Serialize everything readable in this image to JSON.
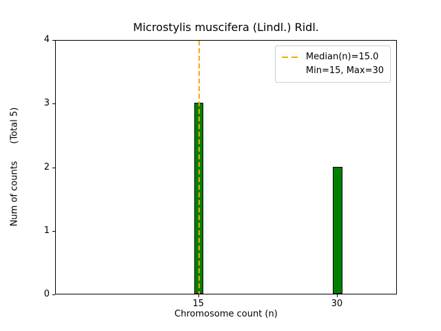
{
  "chart_data": {
    "type": "bar",
    "title": "Microstylis muscifera (Lindl.) Ridl.",
    "xlabel": "Chromosome count (n)",
    "ylabel": "Num of counts      (Total 5)",
    "x": [
      15,
      30
    ],
    "values": [
      3,
      2
    ],
    "bar_width_units": 1.0,
    "bar_color": "#008000",
    "bar_edge_color": "#000000",
    "xlim": [
      -0.5,
      36.5
    ],
    "ylim": [
      0,
      4
    ],
    "xticks": [
      15,
      30
    ],
    "yticks": [
      0,
      1,
      2,
      3,
      4
    ],
    "grid": false,
    "median_line": {
      "x": 15,
      "color": "#FFA500",
      "style": "dashed"
    },
    "legend": {
      "position": "upper right",
      "entries": [
        "Median(n)=15.0",
        "Min=15, Max=30"
      ]
    }
  }
}
